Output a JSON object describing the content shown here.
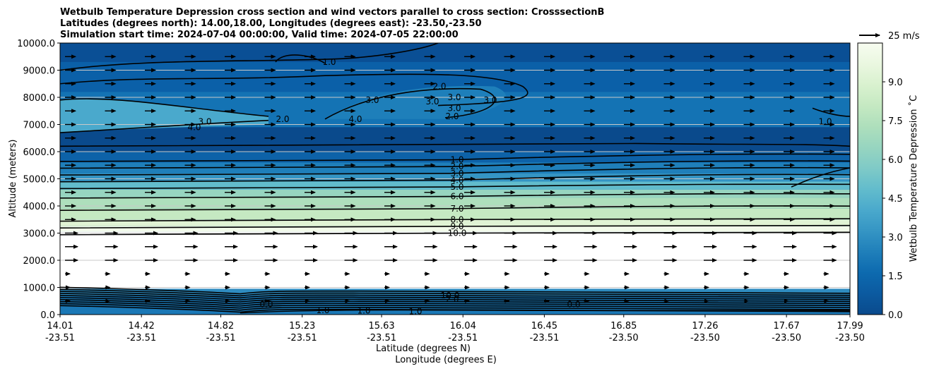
{
  "chart_data": {
    "type": "contour",
    "title": [
      "Wetbulb Temperature Depression cross section and wind vectors parallel to cross section: CrosssectionB",
      "Latitudes (degrees north): 14.00,18.00, Longitudes (degrees east): -23.50,-23.50",
      "Simulation start time: 2024-07-04 00:00:00, Valid time: 2024-07-05 22:00:00"
    ],
    "ylabel": "Altitude (meters)",
    "xlabel_lat": "Latitude (degrees N)",
    "xlabel_lon": "Longitude (degrees E)",
    "xlim": [
      14.01,
      17.99
    ],
    "ylim": [
      0,
      10000
    ],
    "y_ticks": [
      0,
      1000,
      2000,
      3000,
      4000,
      5000,
      6000,
      7000,
      8000,
      9000,
      10000
    ],
    "y_tick_labels": [
      "0.0",
      "1000.0",
      "2000.0",
      "3000.0",
      "4000.0",
      "5000.0",
      "6000.0",
      "7000.0",
      "8000.0",
      "9000.0",
      "10000.0"
    ],
    "x_ticks": [
      {
        "lat": "14.01",
        "lon": "-23.51"
      },
      {
        "lat": "14.42",
        "lon": "-23.51"
      },
      {
        "lat": "14.82",
        "lon": "-23.51"
      },
      {
        "lat": "15.23",
        "lon": "-23.51"
      },
      {
        "lat": "15.63",
        "lon": "-23.51"
      },
      {
        "lat": "16.04",
        "lon": "-23.51"
      },
      {
        "lat": "16.45",
        "lon": "-23.51"
      },
      {
        "lat": "16.85",
        "lon": "-23.50"
      },
      {
        "lat": "17.26",
        "lon": "-23.50"
      },
      {
        "lat": "17.67",
        "lon": "-23.50"
      },
      {
        "lat": "17.99",
        "lon": "-23.50"
      }
    ],
    "grid": "horizontal",
    "colorbar": {
      "label": "Wetbulb Temperature Depression ˚C",
      "range": [
        0,
        10.5
      ],
      "ticks": [
        "0.0",
        "1.5",
        "3.0",
        "4.5",
        "6.0",
        "7.5",
        "9.0"
      ],
      "tick_values": [
        0,
        1.5,
        3.0,
        4.5,
        6.0,
        7.5,
        9.0
      ],
      "colors": [
        "#0a4a8c",
        "#0b5aa0",
        "#0d6aaf",
        "#1f7fba",
        "#3595c4",
        "#4aa9cc",
        "#62bccc",
        "#7fcac7",
        "#97d5c0",
        "#aedfbc",
        "#c5e9c2",
        "#d9f1cf",
        "#eaf7e0",
        "#f7fcf0"
      ]
    },
    "wind_key": "25 m/s",
    "contour_levels_labeled": [
      {
        "value": "1.0",
        "alt": 5700
      },
      {
        "value": "2.0",
        "alt": 5450
      },
      {
        "value": "3.0",
        "alt": 5200
      },
      {
        "value": "4.0",
        "alt": 4950
      },
      {
        "value": "5.0",
        "alt": 4700
      },
      {
        "value": "6.0",
        "alt": 4350
      },
      {
        "value": "7.0",
        "alt": 3900
      },
      {
        "value": "8.0",
        "alt": 3500
      },
      {
        "value": "9.0",
        "alt": 3250
      },
      {
        "value": "10.0",
        "alt": 3000
      }
    ],
    "upper_labels": [
      "1.0",
      "2.0",
      "3.0",
      "3.0",
      "3.0",
      "3.0",
      "2.0",
      "3.0",
      "4.0",
      "3.0",
      "4.0",
      "2.0",
      "1.0"
    ],
    "lower_labels": [
      "10.0",
      "0.0",
      "1.0",
      "1.0",
      "1.0",
      "0.0",
      "2.0"
    ]
  }
}
